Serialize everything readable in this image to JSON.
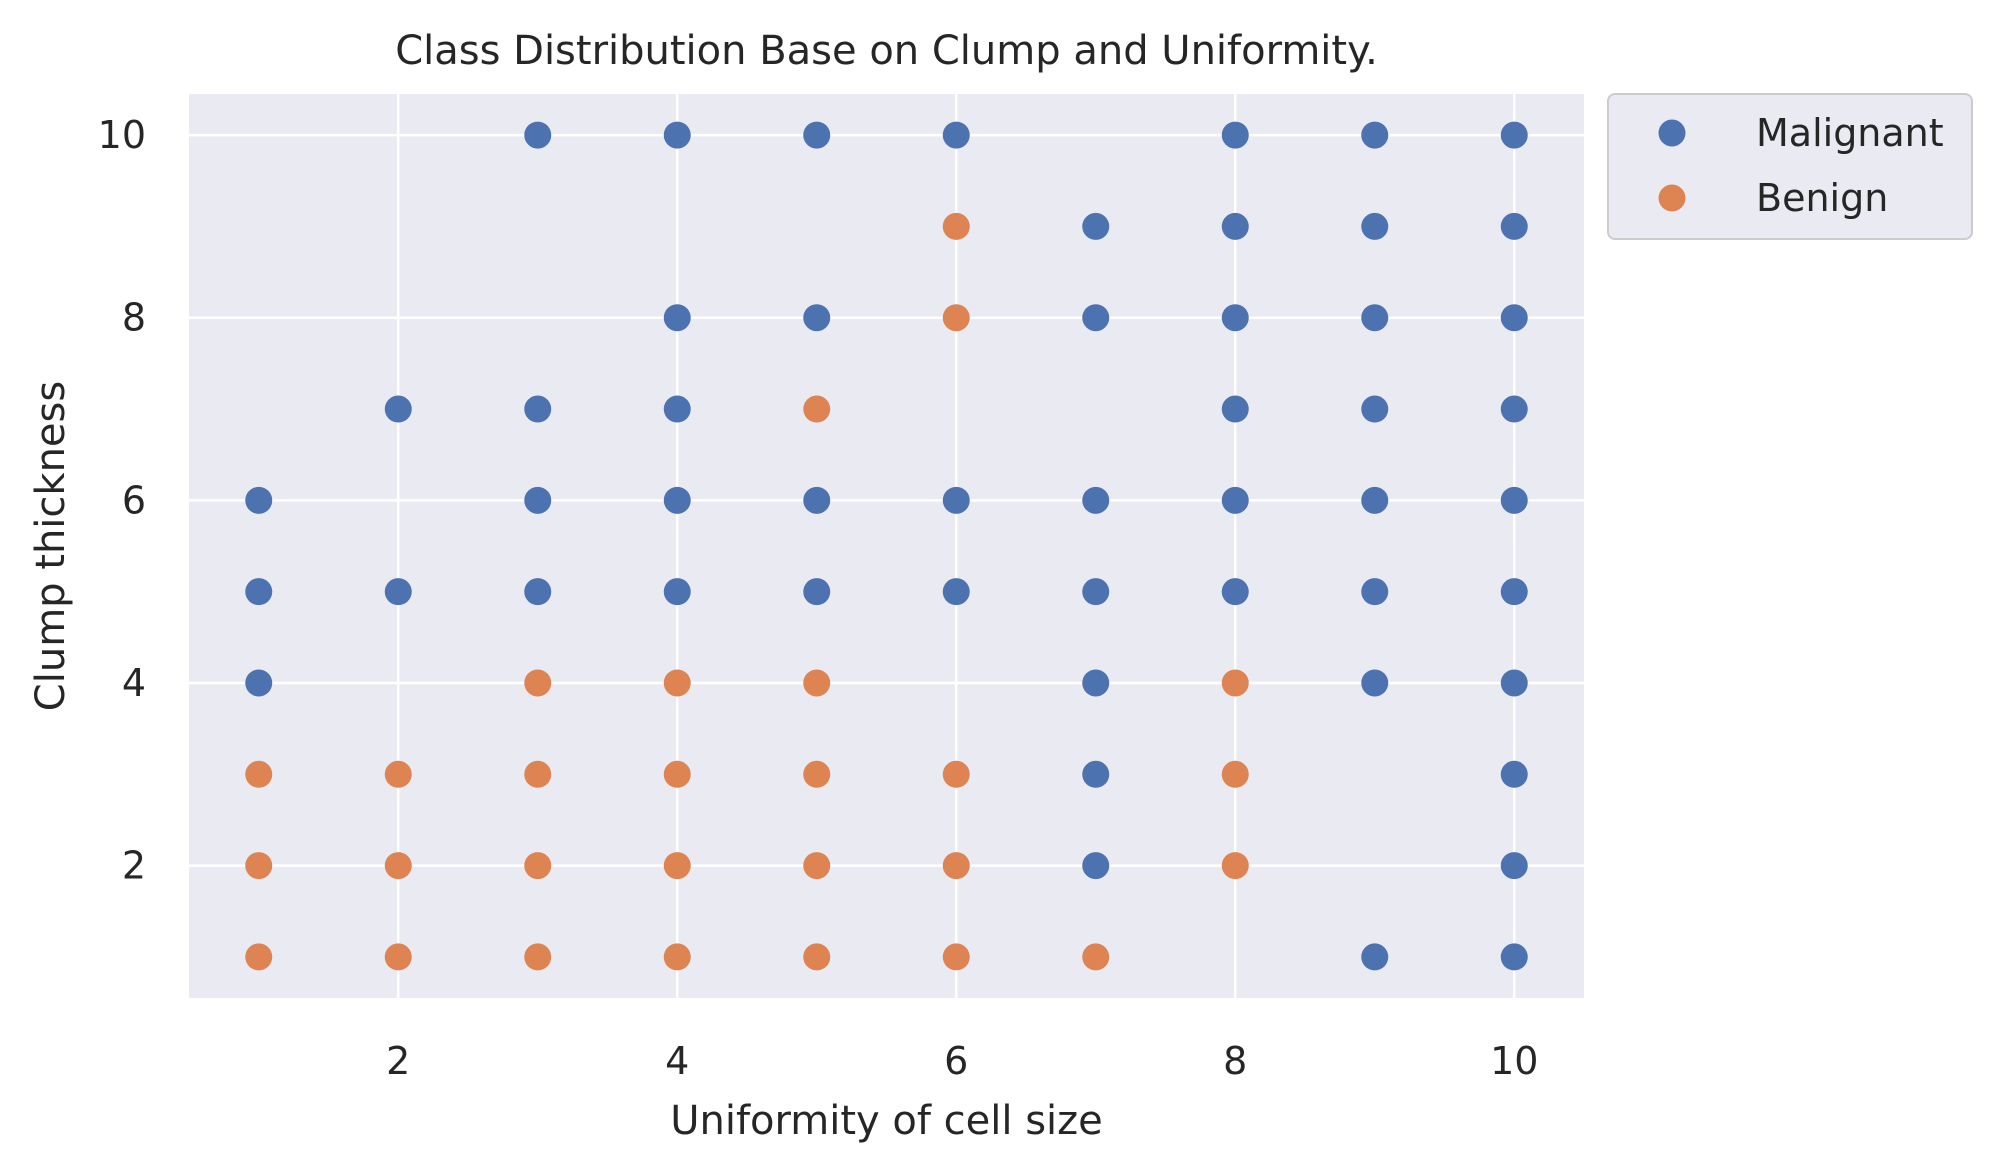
{
  "chart_data": {
    "type": "scatter",
    "title": "Class Distribution Base on Clump and Uniformity.",
    "xlabel": "Uniformity of cell size",
    "ylabel": "Clump thickness",
    "xlim": [
      0.5,
      10.5
    ],
    "ylim": [
      0.55,
      10.45
    ],
    "x_ticks": [
      2,
      4,
      6,
      8,
      10
    ],
    "y_ticks": [
      2,
      4,
      6,
      8,
      10
    ],
    "grid": true,
    "legend_position": "outside-top-right",
    "colors": {
      "plot_background": "#eaeaf2",
      "grid": "#ffffff",
      "Malignant": "#4c72b0",
      "Benign": "#dd8452"
    },
    "series": [
      {
        "name": "Malignant",
        "points": [
          [
            1,
            4
          ],
          [
            1,
            5
          ],
          [
            1,
            6
          ],
          [
            2,
            5
          ],
          [
            2,
            7
          ],
          [
            3,
            5
          ],
          [
            3,
            6
          ],
          [
            3,
            7
          ],
          [
            3,
            10
          ],
          [
            4,
            5
          ],
          [
            4,
            6
          ],
          [
            4,
            7
          ],
          [
            4,
            8
          ],
          [
            4,
            10
          ],
          [
            5,
            5
          ],
          [
            5,
            6
          ],
          [
            5,
            8
          ],
          [
            5,
            10
          ],
          [
            6,
            5
          ],
          [
            6,
            6
          ],
          [
            6,
            10
          ],
          [
            7,
            2
          ],
          [
            7,
            3
          ],
          [
            7,
            4
          ],
          [
            7,
            5
          ],
          [
            7,
            6
          ],
          [
            7,
            8
          ],
          [
            7,
            9
          ],
          [
            8,
            5
          ],
          [
            8,
            6
          ],
          [
            8,
            7
          ],
          [
            8,
            8
          ],
          [
            8,
            9
          ],
          [
            8,
            10
          ],
          [
            9,
            1
          ],
          [
            9,
            4
          ],
          [
            9,
            5
          ],
          [
            9,
            6
          ],
          [
            9,
            7
          ],
          [
            9,
            8
          ],
          [
            9,
            9
          ],
          [
            9,
            10
          ],
          [
            10,
            1
          ],
          [
            10,
            2
          ],
          [
            10,
            3
          ],
          [
            10,
            4
          ],
          [
            10,
            5
          ],
          [
            10,
            6
          ],
          [
            10,
            7
          ],
          [
            10,
            8
          ],
          [
            10,
            9
          ],
          [
            10,
            10
          ]
        ]
      },
      {
        "name": "Benign",
        "points": [
          [
            1,
            1
          ],
          [
            1,
            2
          ],
          [
            1,
            3
          ],
          [
            2,
            1
          ],
          [
            2,
            2
          ],
          [
            2,
            3
          ],
          [
            3,
            1
          ],
          [
            3,
            2
          ],
          [
            3,
            3
          ],
          [
            3,
            4
          ],
          [
            4,
            1
          ],
          [
            4,
            2
          ],
          [
            4,
            3
          ],
          [
            4,
            4
          ],
          [
            5,
            1
          ],
          [
            5,
            2
          ],
          [
            5,
            3
          ],
          [
            5,
            4
          ],
          [
            5,
            7
          ],
          [
            6,
            1
          ],
          [
            6,
            2
          ],
          [
            6,
            3
          ],
          [
            6,
            8
          ],
          [
            6,
            9
          ],
          [
            7,
            1
          ],
          [
            8,
            2
          ],
          [
            8,
            3
          ],
          [
            8,
            4
          ]
        ]
      }
    ]
  }
}
